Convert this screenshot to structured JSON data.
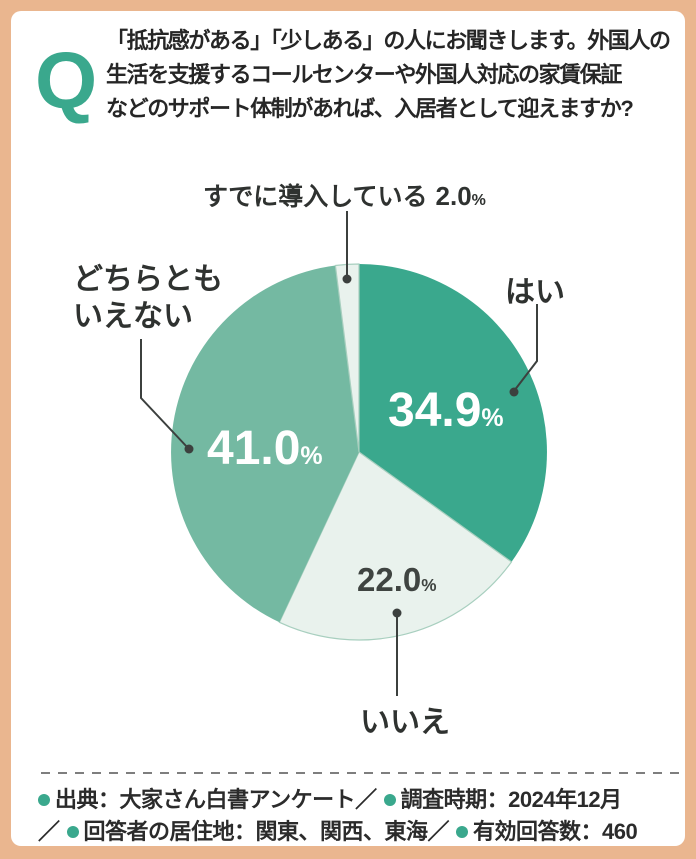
{
  "question": {
    "q_mark": "Q",
    "lines": [
      "「抵抗感がある」「少しある」の人にお聞きします。外国人の",
      "生活を支援するコールセンターや外国人対応の家賃保証",
      "などのサポート体制があれば、入居者として迎えますか?"
    ]
  },
  "chart_data": {
    "type": "pie",
    "unit": "%",
    "start_angle_deg": 0,
    "direction": "clockwise",
    "legend_position": "callout-labels",
    "slices": [
      {
        "key": "hai",
        "label": "はい",
        "value": 34.9,
        "value_text": "34.9",
        "color": "#3aa88d",
        "outlined": false
      },
      {
        "key": "iie",
        "label": "いいえ",
        "value": 22.0,
        "value_text": "22.0",
        "color": "#e9f2ed",
        "outlined": true
      },
      {
        "key": "dochira",
        "label": "どちらともいえない",
        "value": 41.0,
        "value_text": "41.0",
        "color": "#74b9a2",
        "outlined": false,
        "callout_label": "どちらとも\nいえない"
      },
      {
        "key": "sudeni",
        "label": "すでに導入している",
        "value": 2.0,
        "value_text": "2.0",
        "color": "#e9f2ed",
        "outlined": true
      }
    ]
  },
  "footer": {
    "lines": [
      {
        "tokens": [
          {
            "t": "bullet"
          },
          {
            "t": "text",
            "v": "出典：大家さん白書アンケート"
          },
          {
            "t": "text",
            "v": "／"
          },
          {
            "t": "bullet"
          },
          {
            "t": "text",
            "v": "調査時期：2024年12月"
          }
        ]
      },
      {
        "tokens": [
          {
            "t": "text",
            "v": "／"
          },
          {
            "t": "bullet"
          },
          {
            "t": "text",
            "v": "回答者の居住地：関東、関西、東海"
          },
          {
            "t": "text",
            "v": "／"
          },
          {
            "t": "bullet"
          },
          {
            "t": "text",
            "v": "有効回答数：460"
          }
        ]
      }
    ]
  },
  "colors": {
    "accent_teal": "#3aa88d",
    "mid_green": "#74b9a2",
    "light_green": "#e9f2ed",
    "border_peach": "#eab68f",
    "leader_line": "#3c403e"
  }
}
